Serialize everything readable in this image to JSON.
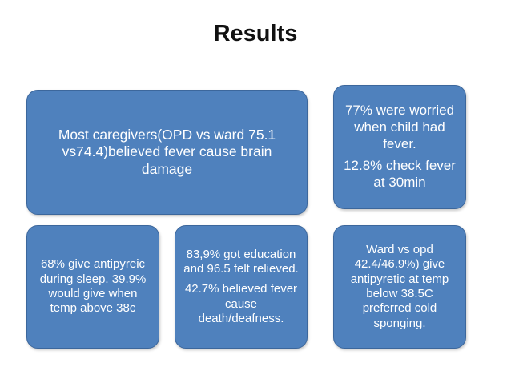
{
  "slide": {
    "title": "Results",
    "accent_color": "#4f81bd",
    "boxes": {
      "brain_damage": {
        "text": "Most caregivers(OPD vs ward 75.1 vs74.4)believed fever cause brain damage"
      },
      "worried": {
        "line1": "77% were worried when child had fever.",
        "line2": "12.8% check fever at 30min"
      },
      "sleep": {
        "text": "68% give antipyreic during sleep. 39.9% would give  when temp above 38c"
      },
      "education": {
        "line1": "83,9% got education and 96.5 felt relieved.",
        "line2": "42.7% believed fever cause death/deafness."
      },
      "ward_vs_opd": {
        "text": "Ward vs opd 42.4/46.9%) give antipyretic at temp below 38.5C preferred cold sponging."
      }
    }
  }
}
